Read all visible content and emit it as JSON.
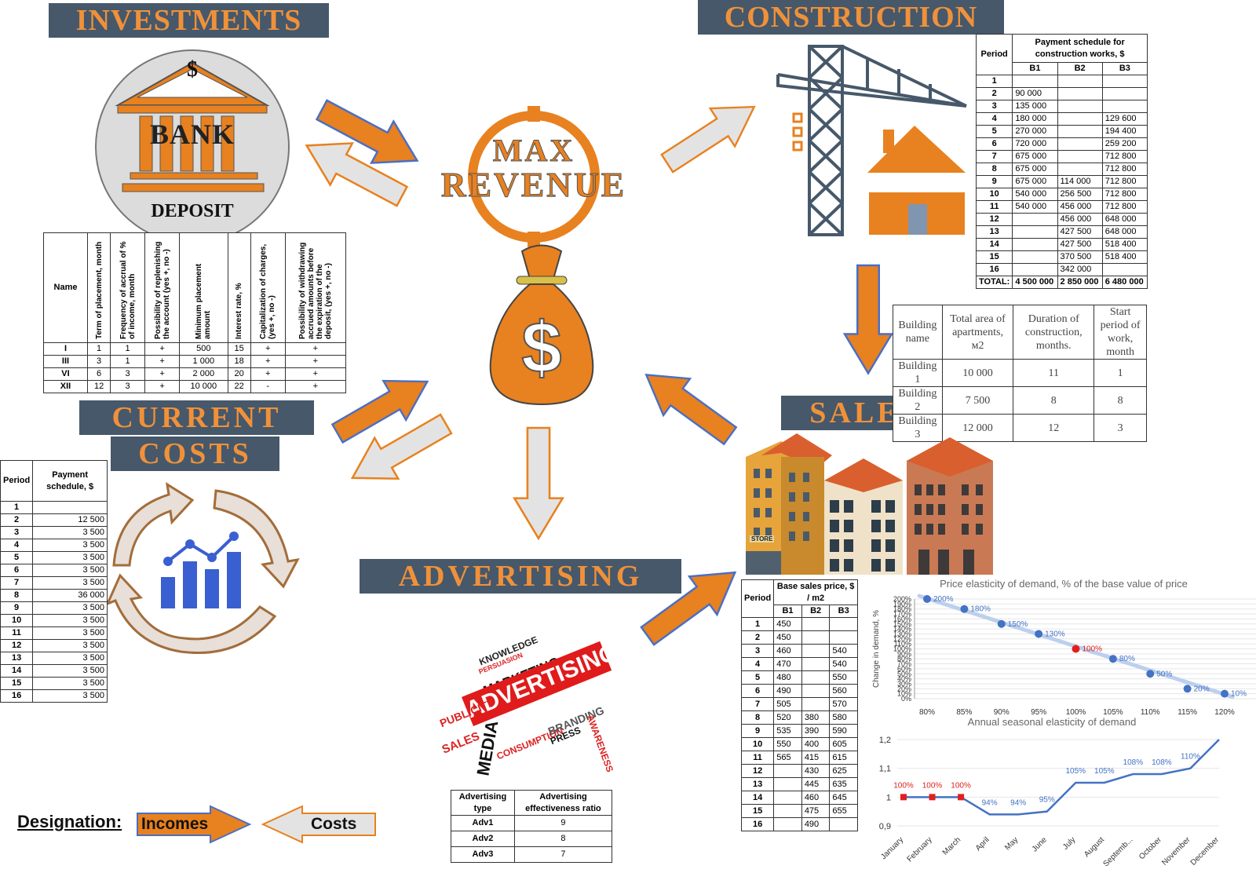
{
  "headers": {
    "investments": "INVESTMENTS",
    "construction": "CONSTRUCTION",
    "current_costs_1": "CURRENT",
    "current_costs_2": "COSTS",
    "sales": "SALES",
    "advertising": "ADVERTISING"
  },
  "center": {
    "max": "MAX",
    "revenue": "REVENUE",
    "dollar": "$"
  },
  "bank": {
    "dollar": "$",
    "bank_text": "BANK",
    "deposit_text": "DEPOSIT"
  },
  "deposit_table": {
    "headers": [
      "Name",
      "Term of placement, month",
      "Frequency of accrual of % of income, month",
      "Possibility of replenishing the account (yes +, no -)",
      "Minimum placement amount",
      "Interest rate, %",
      "Capitalization of charges, (yes +, no -)",
      "Possibility of withdrawing accrued amounts before the expiration of the deposit, (yes +, no -)"
    ],
    "rows": [
      [
        "I",
        "1",
        "1",
        "+",
        "500",
        "15",
        "+",
        "+"
      ],
      [
        "III",
        "3",
        "1",
        "+",
        "1 000",
        "18",
        "+",
        "+"
      ],
      [
        "VI",
        "6",
        "3",
        "+",
        "2 000",
        "20",
        "+",
        "+"
      ],
      [
        "XII",
        "12",
        "3",
        "+",
        "10 000",
        "22",
        "-",
        "+"
      ]
    ]
  },
  "construction_table": {
    "period_header": "Period",
    "title": "Payment schedule for construction works, $",
    "cols": [
      "B1",
      "B2",
      "B3"
    ],
    "rows": [
      [
        "1",
        "",
        "",
        ""
      ],
      [
        "2",
        "90 000",
        "",
        ""
      ],
      [
        "3",
        "135 000",
        "",
        ""
      ],
      [
        "4",
        "180 000",
        "",
        "129 600"
      ],
      [
        "5",
        "270 000",
        "",
        "194 400"
      ],
      [
        "6",
        "720 000",
        "",
        "259 200"
      ],
      [
        "7",
        "675 000",
        "",
        "712 800"
      ],
      [
        "8",
        "675 000",
        "",
        "712 800"
      ],
      [
        "9",
        "675 000",
        "114 000",
        "712 800"
      ],
      [
        "10",
        "540 000",
        "256 500",
        "712 800"
      ],
      [
        "11",
        "540 000",
        "456 000",
        "712 800"
      ],
      [
        "12",
        "",
        "456 000",
        "648 000"
      ],
      [
        "13",
        "",
        "427 500",
        "648 000"
      ],
      [
        "14",
        "",
        "427 500",
        "518 400"
      ],
      [
        "15",
        "",
        "370 500",
        "518 400"
      ],
      [
        "16",
        "",
        "342 000",
        ""
      ]
    ],
    "total": [
      "TOTAL:",
      "4 500 000",
      "2 850 000",
      "6 480 000"
    ]
  },
  "building_table": {
    "headers": [
      "Building name",
      "Total area of apartments, м2",
      "Duration of construction, months.",
      "Start period of work, month"
    ],
    "rows": [
      [
        "Building 1",
        "10 000",
        "11",
        "1"
      ],
      [
        "Building 2",
        "7 500",
        "8",
        "8"
      ],
      [
        "Building 3",
        "12 000",
        "12",
        "3"
      ]
    ]
  },
  "costs_table": {
    "headers": [
      "Period",
      "Payment schedule, $"
    ],
    "rows": [
      [
        "1",
        ""
      ],
      [
        "2",
        "12 500"
      ],
      [
        "3",
        "3 500"
      ],
      [
        "4",
        "3 500"
      ],
      [
        "5",
        "3 500"
      ],
      [
        "6",
        "3 500"
      ],
      [
        "7",
        "3 500"
      ],
      [
        "8",
        "36 000"
      ],
      [
        "9",
        "3 500"
      ],
      [
        "10",
        "3 500"
      ],
      [
        "11",
        "3 500"
      ],
      [
        "12",
        "3 500"
      ],
      [
        "13",
        "3 500"
      ],
      [
        "14",
        "3 500"
      ],
      [
        "15",
        "3 500"
      ],
      [
        "16",
        "3 500"
      ]
    ]
  },
  "sales_table": {
    "period_header": "Period",
    "title": "Base sales price, $ / m2",
    "cols": [
      "B1",
      "B2",
      "B3"
    ],
    "rows": [
      [
        "1",
        "450",
        "",
        ""
      ],
      [
        "2",
        "450",
        "",
        ""
      ],
      [
        "3",
        "460",
        "",
        "540"
      ],
      [
        "4",
        "470",
        "",
        "540"
      ],
      [
        "5",
        "480",
        "",
        "550"
      ],
      [
        "6",
        "490",
        "",
        "560"
      ],
      [
        "7",
        "505",
        "",
        "570"
      ],
      [
        "8",
        "520",
        "380",
        "580"
      ],
      [
        "9",
        "535",
        "390",
        "590"
      ],
      [
        "10",
        "550",
        "400",
        "605"
      ],
      [
        "11",
        "565",
        "415",
        "615"
      ],
      [
        "12",
        "",
        "430",
        "625"
      ],
      [
        "13",
        "",
        "445",
        "635"
      ],
      [
        "14",
        "",
        "460",
        "645"
      ],
      [
        "15",
        "",
        "475",
        "655"
      ],
      [
        "16",
        "",
        "490",
        ""
      ]
    ]
  },
  "adv_table": {
    "headers": [
      "Advertising type",
      "Advertising effectiveness ratio"
    ],
    "rows": [
      [
        "Adv1",
        "9"
      ],
      [
        "Adv2",
        "8"
      ],
      [
        "Adv3",
        "7"
      ]
    ]
  },
  "adv_cloud": {
    "main": "ADVERTISING",
    "words": [
      "MARKETING",
      "MEDIA",
      "PUBLICITY",
      "SALES",
      "BRANDING",
      "PRESS",
      "CONSUMPTION",
      "AWARENESS",
      "KNOWLEDGE",
      "PERSUASION"
    ]
  },
  "store_sign": "STORE",
  "designation": {
    "label": "Designation:",
    "incomes": "Incomes",
    "costs": "Costs"
  },
  "colors": {
    "header_bg": "#46586a",
    "header_text": "#f0913a",
    "income_arrow": "#e8811f",
    "cost_arrow": "#e3e3e3",
    "arrow_outline": "#4a6fc4"
  },
  "chart_data": [
    {
      "type": "line",
      "title": "Price elasticity of demand, % of the base value of price",
      "xlabel": "",
      "ylabel": "Change in demand, %",
      "x": [
        "80%",
        "85%",
        "90%",
        "95%",
        "100%",
        "105%",
        "110%",
        "115%",
        "120%"
      ],
      "y_ticks": [
        "0%",
        "10%",
        "20%",
        "30%",
        "40%",
        "50%",
        "60%",
        "70%",
        "80%",
        "90%",
        "100%",
        "110%",
        "120%",
        "130%",
        "140%",
        "150%",
        "160%",
        "170%",
        "180%",
        "190%",
        "200%"
      ],
      "ylim": [
        0,
        200
      ],
      "series": [
        {
          "values": [
            200,
            180,
            150,
            130,
            100,
            80,
            50,
            20,
            10
          ]
        }
      ],
      "data_labels": [
        "200%",
        "180%",
        "150%",
        "130%",
        "100%",
        "80%",
        "50%",
        "20%",
        "10%"
      ]
    },
    {
      "type": "line",
      "title": "Annual seasonal elasticity of demand",
      "x": [
        "January",
        "February",
        "March",
        "April",
        "May",
        "June",
        "July",
        "August",
        "Septemb...",
        "October",
        "November",
        "December"
      ],
      "y_ticks": [
        "0,9",
        "1",
        "1,1",
        "1,2"
      ],
      "ylim": [
        0.9,
        1.2
      ],
      "series": [
        {
          "values": [
            1.0,
            1.0,
            1.0,
            0.94,
            0.94,
            0.95,
            1.05,
            1.05,
            1.08,
            1.08,
            1.1,
            1.2
          ]
        }
      ],
      "data_labels": [
        "100%",
        "100%",
        "100%",
        "94%",
        "94%",
        "95%",
        "105%",
        "105%",
        "108%",
        "108%",
        "110%",
        ""
      ]
    }
  ]
}
